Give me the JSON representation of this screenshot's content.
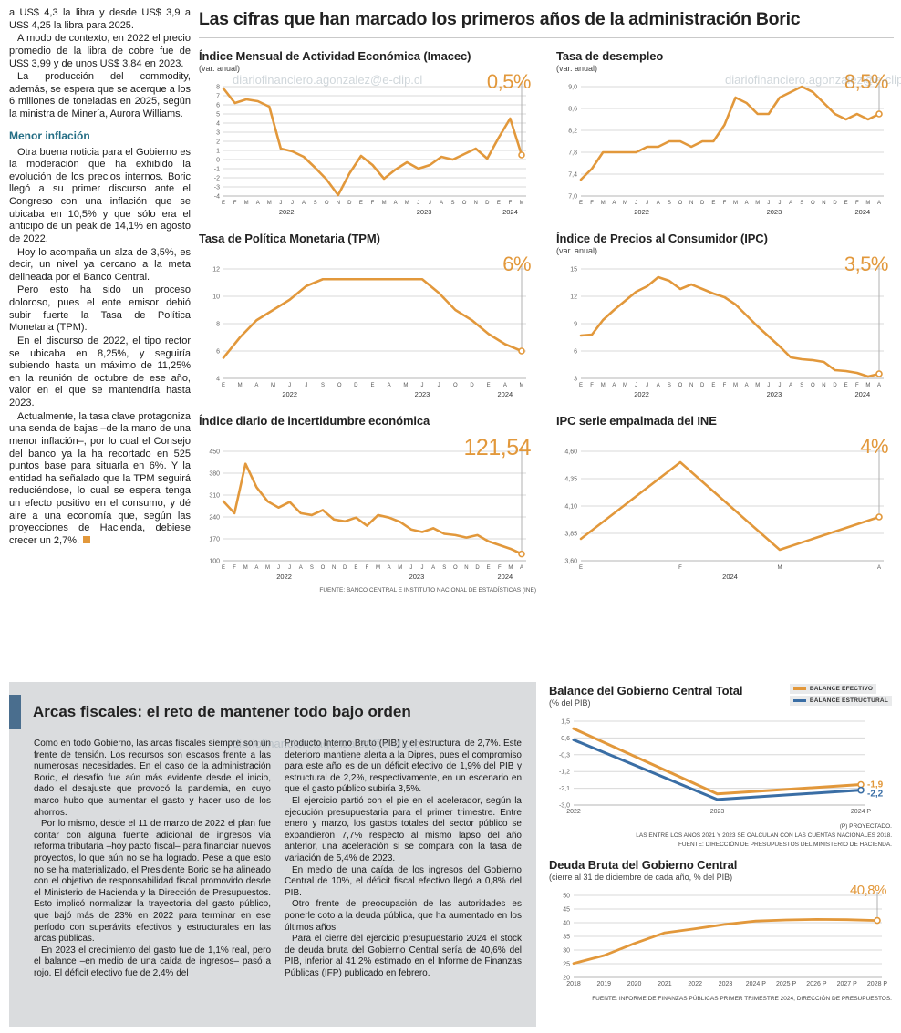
{
  "page": {
    "watermark": "diariofinanciero.agonzalez@e-clip.cl"
  },
  "main_title": "Las cifras que han marcado los primeros años de la administración Boric",
  "left_article": {
    "intro_paragraphs": [
      "a US$ 4,3 la libra y desde US$ 3,9 a US$ 4,25 la libra para 2025.",
      "A modo de contexto, en 2022 el precio promedio de la libra de cobre fue de US$ 3,99 y de unos US$ 3,84 en 2023.",
      "La producción del commodity, además, se espera que se acerque a los 6 millones de toneladas en 2025, según la ministra de Minería, Aurora Williams."
    ],
    "subheading": "Menor inflación",
    "paragraphs": [
      "Otra buena noticia para el Gobierno es la moderación que ha exhibido la evolución de los precios internos. Boric llegó a su primer discurso ante el Congreso con una inflación que se ubicaba en 10,5% y que sólo era el anticipo de un peak de 14,1% en agosto de 2022.",
      "Hoy lo acompaña un alza de 3,5%, es decir, un nivel ya cercano a la meta delineada por el Banco Central.",
      "Pero esto ha sido un proceso doloroso, pues el ente emisor debió subir fuerte la Tasa de Política Monetaria (TPM).",
      "En el discurso de 2022, el tipo rector se ubicaba en 8,25%, y seguiría subiendo hasta un máximo de 11,25% en la reunión de octubre de ese año, valor en el que se mantendría hasta 2023.",
      "Actualmente, la tasa clave protagoniza una senda de bajas –de la mano de una menor inflación–, por lo cual el Consejo del banco ya la ha recortado en 525 puntos base para situarla en 6%. Y la entidad ha señalado que la TPM seguirá reduciéndose, lo cual se espera tenga un efecto positivo en el consumo, y dé aire a una economía que, según las proyecciones de Hacienda, debiese crecer un 2,7%."
    ]
  },
  "bottom": {
    "title": "Arcas fiscales: el reto de mantener todo bajo orden",
    "col1_paragraphs": [
      "Como en todo Gobierno, las arcas fiscales siempre son un frente de tensión. Los recursos son escasos frente a las numerosas necesidades. En el caso de la administración Boric, el desafío fue aún más evidente desde el inicio, dado el desajuste que provocó la pandemia, en cuyo marco hubo que aumentar el gasto y hacer uso de los ahorros.",
      "Por lo mismo, desde el 11 de marzo de 2022 el plan fue contar con alguna fuente adicional de ingresos vía reforma tributaria –hoy pacto fiscal– para financiar nuevos proyectos, lo que aún no se ha logrado. Pese a que esto no se ha materializado, el Presidente Boric se ha alineado con el objetivo de responsabilidad fiscal promovido desde el Ministerio de Hacienda y la Dirección de Presupuestos. Esto implicó normalizar la trayectoria del gasto público, que bajó más de 23% en 2022 para terminar en ese período con superávits efectivos y estructurales en las arcas públicas.",
      "En 2023 el crecimiento del gasto fue de 1,1% real, pero el balance –en medio de una caída de ingresos– pasó a rojo. El déficit efectivo fue de 2,4% del"
    ],
    "col2_paragraphs": [
      "Producto Interno Bruto (PIB) y el estructural de 2,7%. Este deterioro mantiene alerta a la Dipres, pues el compromiso para este año es de un déficit efectivo de 1,9% del PIB y estructural de 2,2%, respectivamente, en un escenario en que el gasto público subiría 3,5%.",
      "El ejercicio partió con el pie en el acelerador, según la ejecución presupuestaria para el primer trimestre. Entre enero y marzo, los gastos totales del sector público se expandieron 7,7% respecto al mismo lapso del año anterior, una aceleración si se compara con la tasa de variación de 5,4% de 2023.",
      "En medio de una caída de los ingresos del Gobierno Central de 10%, el déficit fiscal efectivo llegó a 0,8% del PIB.",
      "Otro frente de preocupación de las autoridades es ponerle coto a la deuda pública, que ha aumentado en los últimos años.",
      "Para el cierre del ejercicio presupuestario 2024 el stock de deuda bruta del Gobierno Central sería de 40,6% del PIB, inferior al 41,2% estimado en el Informe de Finanzas Públicas (IFP) publicado en febrero."
    ]
  },
  "colors": {
    "accent_orange": "#E2983B",
    "accent_blue": "#3A6EA5",
    "subhead_teal": "#256E85",
    "box_accent": "#4A6E8E",
    "box_bg": "#DADCDE"
  },
  "chart_data": [
    {
      "type": "line",
      "title": "Índice Mensual de Actividad Económica (Imacec)",
      "subtitle": "(var. anual)",
      "highlight": "0,5%",
      "ylim": [
        -4,
        8
      ],
      "yticks": [
        8,
        7,
        6,
        5,
        4,
        3,
        2,
        1,
        0,
        -1,
        -2,
        -3,
        -4
      ],
      "ytick_labels": [
        "8",
        "7",
        "6",
        "5",
        "4",
        "3",
        "2",
        "1",
        "0",
        "-1",
        "-2",
        "-3",
        "-4"
      ],
      "x_labels": [
        "E",
        "F",
        "M",
        "A",
        "M",
        "J",
        "J",
        "A",
        "S",
        "O",
        "N",
        "D",
        "E",
        "F",
        "M",
        "A",
        "M",
        "J",
        "J",
        "A",
        "S",
        "O",
        "N",
        "D",
        "E",
        "F",
        "M"
      ],
      "year_ticks": [
        {
          "label": "2022",
          "index": 5.5
        },
        {
          "label": "2023",
          "index": 17.5
        },
        {
          "label": "2024",
          "index": 25
        }
      ],
      "series": [
        {
          "name": "Imacec",
          "color": "#E2983B",
          "values": [
            7.8,
            6.2,
            6.6,
            6.4,
            5.8,
            1.2,
            0.9,
            0.3,
            -0.9,
            -2.2,
            -3.9,
            -1.5,
            0.4,
            -0.6,
            -2.1,
            -1.1,
            -0.3,
            -1.0,
            -0.6,
            0.3,
            0.0,
            0.6,
            1.2,
            0.1,
            2.4,
            4.5,
            0.5
          ]
        }
      ]
    },
    {
      "type": "line",
      "title": "Tasa de desempleo",
      "subtitle": "(var. anual)",
      "highlight": "8,5%",
      "ylim": [
        7.0,
        9.0
      ],
      "yticks": [
        9.0,
        8.6,
        8.2,
        7.8,
        7.4,
        7.0
      ],
      "ytick_labels": [
        "9,0",
        "8,6",
        "8,2",
        "7,8",
        "7,4",
        "7,0"
      ],
      "x_labels": [
        "E",
        "F",
        "M",
        "A",
        "M",
        "J",
        "J",
        "A",
        "S",
        "O",
        "N",
        "D",
        "E",
        "F",
        "M",
        "A",
        "M",
        "J",
        "J",
        "A",
        "S",
        "O",
        "N",
        "D",
        "E",
        "F",
        "M",
        "A"
      ],
      "year_ticks": [
        {
          "label": "2022",
          "index": 5.5
        },
        {
          "label": "2023",
          "index": 17.5
        },
        {
          "label": "2024",
          "index": 25.5
        }
      ],
      "series": [
        {
          "name": "Tasa de desempleo",
          "color": "#E2983B",
          "values": [
            7.3,
            7.5,
            7.8,
            7.8,
            7.8,
            7.8,
            7.9,
            7.9,
            8.0,
            8.0,
            7.9,
            8.0,
            8.0,
            8.3,
            8.8,
            8.7,
            8.5,
            8.5,
            8.8,
            8.9,
            9.0,
            8.9,
            8.7,
            8.5,
            8.4,
            8.5,
            8.4,
            8.5
          ]
        }
      ]
    },
    {
      "type": "line",
      "title": "Tasa de Política Monetaria (TPM)",
      "subtitle": "",
      "highlight": "6%",
      "ylim": [
        4,
        12
      ],
      "yticks": [
        12,
        10,
        8,
        6,
        4
      ],
      "ytick_labels": [
        "12",
        "10",
        "8",
        "6",
        "4"
      ],
      "x_labels": [
        "E",
        "M",
        "A",
        "M",
        "J",
        "J",
        "S",
        "O",
        "D",
        "E",
        "A",
        "M",
        "J",
        "J",
        "O",
        "D",
        "E",
        "A",
        "M"
      ],
      "year_ticks": [
        {
          "label": "2022",
          "index": 4
        },
        {
          "label": "2023",
          "index": 12
        },
        {
          "label": "2024",
          "index": 17
        }
      ],
      "series": [
        {
          "name": "TPM",
          "color": "#E2983B",
          "values": [
            5.5,
            7.0,
            8.25,
            9.0,
            9.75,
            10.75,
            11.25,
            11.25,
            11.25,
            11.25,
            11.25,
            11.25,
            11.25,
            10.25,
            9.0,
            8.25,
            7.25,
            6.5,
            6.0
          ]
        }
      ]
    },
    {
      "type": "line",
      "title": "Índice de Precios al Consumidor (IPC)",
      "subtitle": "(var. anual)",
      "highlight": "3,5%",
      "ylim": [
        3,
        15
      ],
      "yticks": [
        15,
        12,
        9,
        6,
        3
      ],
      "ytick_labels": [
        "15",
        "12",
        "9",
        "6",
        "3"
      ],
      "x_labels": [
        "E",
        "F",
        "M",
        "A",
        "M",
        "J",
        "J",
        "A",
        "S",
        "O",
        "N",
        "D",
        "E",
        "F",
        "M",
        "A",
        "M",
        "J",
        "J",
        "A",
        "S",
        "O",
        "N",
        "D",
        "E",
        "F",
        "M",
        "A"
      ],
      "year_ticks": [
        {
          "label": "2022",
          "index": 5.5
        },
        {
          "label": "2023",
          "index": 17.5
        },
        {
          "label": "2024",
          "index": 25.5
        }
      ],
      "series": [
        {
          "name": "IPC",
          "color": "#E2983B",
          "values": [
            7.7,
            7.8,
            9.4,
            10.5,
            11.5,
            12.5,
            13.1,
            14.1,
            13.7,
            12.8,
            13.3,
            12.8,
            12.3,
            11.9,
            11.1,
            9.9,
            8.7,
            7.6,
            6.5,
            5.3,
            5.1,
            5.0,
            4.8,
            3.9,
            3.8,
            3.6,
            3.2,
            3.5
          ]
        }
      ]
    },
    {
      "type": "line",
      "title": "Índice diario de incertidumbre económica",
      "subtitle": "",
      "highlight": "121,54",
      "ylim": [
        100,
        450
      ],
      "yticks": [
        450,
        380,
        310,
        240,
        170,
        100
      ],
      "ytick_labels": [
        "450",
        "380",
        "310",
        "240",
        "170",
        "100"
      ],
      "x_labels": [
        "E",
        "F",
        "M",
        "A",
        "M",
        "J",
        "J",
        "A",
        "S",
        "O",
        "N",
        "D",
        "E",
        "F",
        "M",
        "A",
        "M",
        "J",
        "J",
        "A",
        "S",
        "O",
        "N",
        "D",
        "E",
        "F",
        "M",
        "A"
      ],
      "year_ticks": [
        {
          "label": "2022",
          "index": 5.5
        },
        {
          "label": "2023",
          "index": 17.5
        },
        {
          "label": "2024",
          "index": 25.5
        }
      ],
      "series": [
        {
          "name": "Incertidumbre económica",
          "color": "#E2983B",
          "values": [
            290,
            252,
            410,
            335,
            290,
            270,
            288,
            252,
            246,
            262,
            232,
            226,
            238,
            212,
            246,
            238,
            224,
            200,
            192,
            204,
            186,
            182,
            174,
            182,
            162,
            150,
            138,
            121.54
          ]
        }
      ],
      "source": "FUENTE: BANCO CENTRAL E INSTITUTO NACIONAL DE ESTADÍSTICAS (INE)"
    },
    {
      "type": "line",
      "title": "IPC serie empalmada del INE",
      "subtitle": "",
      "highlight": "4%",
      "ylim": [
        3.6,
        4.6
      ],
      "yticks": [
        4.6,
        4.35,
        4.1,
        3.85,
        3.6
      ],
      "ytick_labels": [
        "4,60",
        "4,35",
        "4,10",
        "3,85",
        "3,60"
      ],
      "x_labels": [
        "E",
        "F",
        "M",
        "A"
      ],
      "year_ticks": [
        {
          "label": "2024",
          "index": 1.5
        }
      ],
      "series": [
        {
          "name": "IPC serie empalmada",
          "color": "#E2983B",
          "values": [
            3.8,
            4.5,
            3.7,
            4.0
          ]
        }
      ]
    },
    {
      "type": "line",
      "title": "Balance del Gobierno Central Total",
      "subtitle": "(% del PIB)",
      "ylim": [
        -3.0,
        1.5
      ],
      "yticks": [
        1.5,
        0.6,
        -0.3,
        -1.2,
        -2.1,
        -3.0
      ],
      "ytick_labels": [
        "1,5",
        "0,6",
        "-0,3",
        "-1,2",
        "-2,1",
        "-3,0"
      ],
      "x_labels": [
        "2022",
        "2023",
        "2024 P"
      ],
      "series": [
        {
          "name": "BALANCE EFECTIVO",
          "color": "#E2983B",
          "width": 3,
          "vline": false,
          "end_label": "-1,9",
          "values": [
            1.1,
            -2.4,
            -1.9
          ]
        },
        {
          "name": "BALANCE ESTRUCTURAL",
          "color": "#3A6EA5",
          "width": 3,
          "vline": false,
          "end_label": "-2,2",
          "values": [
            0.5,
            -2.7,
            -2.2
          ]
        }
      ],
      "notes": [
        "(P) PROYECTADO.",
        "LAS ENTRE LOS AÑOS 2021 Y 2023 SE CALCULAN CON LAS CUENTAS NACIONALES 2018.",
        "FUENTE: DIRECCIÓN DE PRESUPUESTOS DEL MINISTERIO DE HACIENDA."
      ]
    },
    {
      "type": "line",
      "title": "Deuda Bruta del Gobierno Central",
      "subtitle": "(cierre al 31 de diciembre de cada año, % del PIB)",
      "highlight": "40,8%",
      "ylim": [
        20,
        50
      ],
      "yticks": [
        50,
        45,
        40,
        35,
        30,
        25,
        20
      ],
      "ytick_labels": [
        "50",
        "45",
        "40",
        "35",
        "30",
        "25",
        "20"
      ],
      "x_labels": [
        "2018",
        "2019",
        "2020",
        "2021",
        "2022",
        "2023",
        "2024 P",
        "2025 P",
        "2026 P",
        "2027 P",
        "2028 P"
      ],
      "series": [
        {
          "name": "Deuda bruta",
          "color": "#E2983B",
          "width": 2.8,
          "values": [
            25.1,
            28.0,
            32.4,
            36.3,
            37.8,
            39.4,
            40.6,
            41.0,
            41.2,
            41.1,
            40.8
          ]
        }
      ],
      "source": "FUENTE: INFORME DE FINANZAS PÚBLICAS PRIMER TRIMESTRE 2024, DIRECCIÓN DE PRESUPUESTOS."
    }
  ]
}
